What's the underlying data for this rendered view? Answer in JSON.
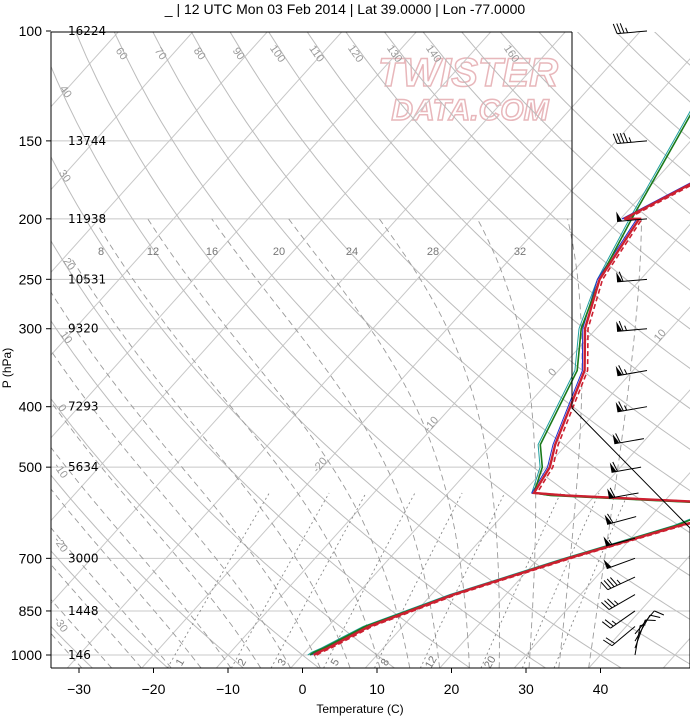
{
  "title": "_ | 12 UTC Mon 03 Feb 2014 | Lat 39.0000 | Lon -77.0000",
  "watermark": [
    "TWISTER",
    "DATA.COM"
  ],
  "colors": {
    "temperature": "#cc2030",
    "dewpoint": "#1a7a1a",
    "parcel": "#2030cc",
    "virtual": "#1fa0a0",
    "grid": "#c8c8c8",
    "dry_adiabat": "#bcbcbc",
    "moist_adiabat": "#9a9a9a",
    "mixing_ratio": "#888888"
  },
  "chart_data": {
    "type": "line",
    "subtype": "skew-t log-p sounding",
    "xlabel": "Temperature (C)",
    "ylabel": "P (hPa)",
    "xlim": [
      -34,
      47
    ],
    "ylim": [
      1050,
      100
    ],
    "yscale": "log",
    "x_ticks": [
      -30,
      -20,
      -10,
      0,
      10,
      20,
      30,
      40
    ],
    "pressure_ticks": [
      100,
      150,
      200,
      250,
      300,
      400,
      500,
      700,
      850,
      1000
    ],
    "height_labels": [
      {
        "p": 100,
        "label": "16224"
      },
      {
        "p": 150,
        "label": "13744"
      },
      {
        "p": 200,
        "label": "11938"
      },
      {
        "p": 250,
        "label": "10531"
      },
      {
        "p": 300,
        "label": "9320"
      },
      {
        "p": 400,
        "label": "7293"
      },
      {
        "p": 500,
        "label": "5634"
      },
      {
        "p": 700,
        "label": "3000"
      },
      {
        "p": 850,
        "label": "1448"
      },
      {
        "p": 1000,
        "label": "146"
      }
    ],
    "isotherm_labels": [
      {
        "t": 40,
        "p": 120
      },
      {
        "t": 30,
        "p": 178
      },
      {
        "t": 20,
        "p": 245
      },
      {
        "t": 10,
        "p": 310
      },
      {
        "t": 0,
        "p": 355
      },
      {
        "t": -10,
        "p": 430
      },
      {
        "t": -20,
        "p": 500
      }
    ],
    "theta_labels": [
      {
        "th": 40,
        "p": 126
      },
      {
        "th": 30,
        "p": 172
      },
      {
        "th": 20,
        "p": 238
      },
      {
        "th": 10,
        "p": 312
      },
      {
        "th": 0,
        "p": 405
      },
      {
        "th": -10,
        "p": 510
      },
      {
        "th": -20,
        "p": 670
      },
      {
        "th": -30,
        "p": 900
      }
    ],
    "theta_top_labels": [
      60,
      70,
      80,
      90,
      100,
      110,
      120,
      130,
      140,
      160
    ],
    "mixing_ratio_labels": [
      8,
      12,
      16,
      20,
      24,
      28,
      32
    ],
    "mixing_ratio_bottom_labels": [
      1,
      2,
      3,
      5,
      8,
      12,
      20
    ],
    "series": [
      {
        "name": "temperature",
        "points": [
          [
            1.5,
            1000
          ],
          [
            1.8,
            990
          ],
          [
            2.6,
            975
          ],
          [
            5.5,
            900
          ],
          [
            13,
            800
          ],
          [
            24,
            700
          ],
          [
            35,
            620
          ],
          [
            41,
            590
          ],
          [
            37,
            570
          ],
          [
            16,
            555
          ],
          [
            11.5,
            550
          ],
          [
            10.5,
            500
          ],
          [
            8.5,
            460
          ],
          [
            3.5,
            350
          ],
          [
            -1.5,
            300
          ],
          [
            -5.5,
            250
          ],
          [
            -7.5,
            200
          ],
          [
            -9.5,
            200
          ],
          [
            1,
            150
          ],
          [
            5,
            100
          ]
        ]
      },
      {
        "name": "dewpoint",
        "points": [
          [
            1,
            1000
          ],
          [
            1.2,
            990
          ],
          [
            2,
            975
          ],
          [
            5,
            900
          ],
          [
            12.8,
            800
          ],
          [
            23.7,
            700
          ],
          [
            34.5,
            620
          ],
          [
            37.5,
            590
          ],
          [
            35,
            570
          ],
          [
            14,
            555
          ],
          [
            11.5,
            550
          ],
          [
            9.5,
            500
          ],
          [
            6.5,
            460
          ],
          [
            2.5,
            350
          ],
          [
            -2,
            300
          ],
          [
            -5.5,
            250
          ],
          [
            -8.5,
            200
          ],
          [
            -12,
            150
          ],
          [
            -17,
            100
          ]
        ]
      }
    ],
    "wind_barbs": [
      {
        "p": 1000,
        "dir": 10,
        "spd": 8
      },
      {
        "p": 975,
        "dir": 20,
        "spd": 10
      },
      {
        "p": 950,
        "dir": 30,
        "spd": 10
      },
      {
        "p": 925,
        "dir": 40,
        "spd": 10
      },
      {
        "p": 900,
        "dir": 230,
        "spd": 20
      },
      {
        "p": 850,
        "dir": 235,
        "spd": 25
      },
      {
        "p": 800,
        "dir": 240,
        "spd": 35
      },
      {
        "p": 750,
        "dir": 245,
        "spd": 45
      },
      {
        "p": 700,
        "dir": 250,
        "spd": 50
      },
      {
        "p": 650,
        "dir": 255,
        "spd": 55
      },
      {
        "p": 600,
        "dir": 255,
        "spd": 60
      },
      {
        "p": 550,
        "dir": 260,
        "spd": 60
      },
      {
        "p": 500,
        "dir": 260,
        "spd": 60
      },
      {
        "p": 450,
        "dir": 260,
        "spd": 60
      },
      {
        "p": 400,
        "dir": 260,
        "spd": 65
      },
      {
        "p": 350,
        "dir": 260,
        "spd": 65
      },
      {
        "p": 300,
        "dir": 265,
        "spd": 65
      },
      {
        "p": 250,
        "dir": 265,
        "spd": 60
      },
      {
        "p": 200,
        "dir": 265,
        "spd": 50
      },
      {
        "p": 150,
        "dir": 265,
        "spd": 45
      },
      {
        "p": 100,
        "dir": 265,
        "spd": 35
      }
    ]
  }
}
